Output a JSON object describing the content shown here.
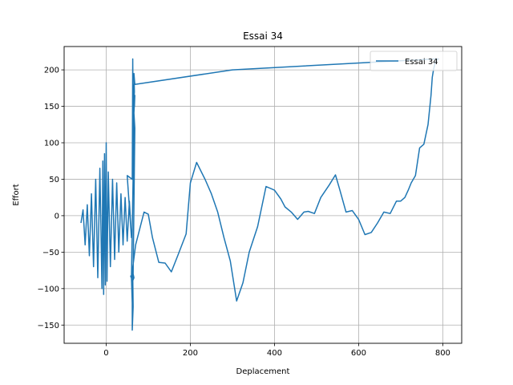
{
  "chart_data": {
    "type": "line",
    "title": "Essai 34",
    "xlabel": "Deplacement",
    "ylabel": "Effort",
    "xlim": [
      -100,
      845
    ],
    "ylim": [
      -175,
      232
    ],
    "xticks": [
      0,
      200,
      400,
      600,
      800
    ],
    "yticks": [
      -150,
      -100,
      -50,
      0,
      50,
      100,
      150,
      200
    ],
    "grid": true,
    "legend_position": "top-right",
    "series": [
      {
        "name": "Essai 34",
        "color": "#1f77b4",
        "x": [
          -60,
          -55,
          -50,
          -45,
          -40,
          -35,
          -30,
          -25,
          -20,
          -15,
          -10,
          -8,
          -6,
          -4,
          -2,
          0,
          2,
          5,
          10,
          15,
          20,
          25,
          30,
          35,
          40,
          45,
          50,
          55,
          60,
          50,
          62,
          63,
          65,
          66,
          64,
          67,
          68,
          65,
          66,
          60,
          62,
          62,
          64,
          63,
          60,
          70,
          90,
          100,
          110,
          125,
          140,
          155,
          170,
          190,
          200,
          215,
          235,
          250,
          265,
          280,
          295,
          310,
          325,
          340,
          360,
          380,
          400,
          415,
          425,
          440,
          455,
          470,
          480,
          495,
          510,
          530,
          545,
          555,
          570,
          585,
          600,
          615,
          630,
          645,
          660,
          675,
          690,
          700,
          710,
          718,
          725,
          735,
          745,
          755,
          765,
          772,
          775,
          778,
          782,
          788,
          790,
          780,
          300,
          68,
          66,
          67,
          65,
          68,
          64,
          66,
          64,
          62,
          60,
          58,
          55,
          52
        ]
      }
    ]
  }
}
